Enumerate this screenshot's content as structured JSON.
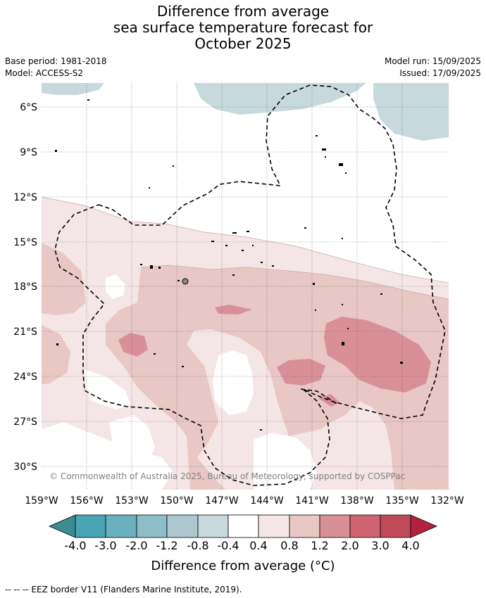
{
  "title_lines": [
    "Difference from average",
    "sea surface temperature forecast for",
    "October 2025"
  ],
  "base_period": "Base period: 1981-2018",
  "model": "Model: ACCESS-S2",
  "model_run": "Model run: 15/09/2025",
  "issued": "Issued: 17/09/2025",
  "lat_labels": [
    "6°S",
    "9°S",
    "12°S",
    "15°S",
    "18°S",
    "21°S",
    "24°S",
    "27°S",
    "30°S"
  ],
  "lon_labels": [
    "159°W",
    "156°W",
    "153°W",
    "150°W",
    "147°W",
    "144°W",
    "141°W",
    "138°W",
    "135°W",
    "132°W"
  ],
  "copyright": "© Commonwealth of Australia 2025, Bureau of Meteorology, supported by COSPPac",
  "colorbar": {
    "ticks": [
      "-4.0",
      "-3.0",
      "-2.0",
      "-1.2",
      "-0.8",
      "-0.4",
      "0.4",
      "0.8",
      "1.2",
      "2.0",
      "3.0",
      "4.0"
    ],
    "colors": [
      "#3e8a93",
      "#4aa5b5",
      "#6bb0bf",
      "#8cbdc8",
      "#acc8ce",
      "#c7d9dd",
      "#ffffff",
      "#f4e6e6",
      "#e8c7c4",
      "#d88f98",
      "#cd6470",
      "#c14a5a",
      "#b3213f"
    ],
    "label": "Difference from average (°C)"
  },
  "footer": "--  --  -- EEZ border V11 (Flanders Marine Institute, 2019)."
}
